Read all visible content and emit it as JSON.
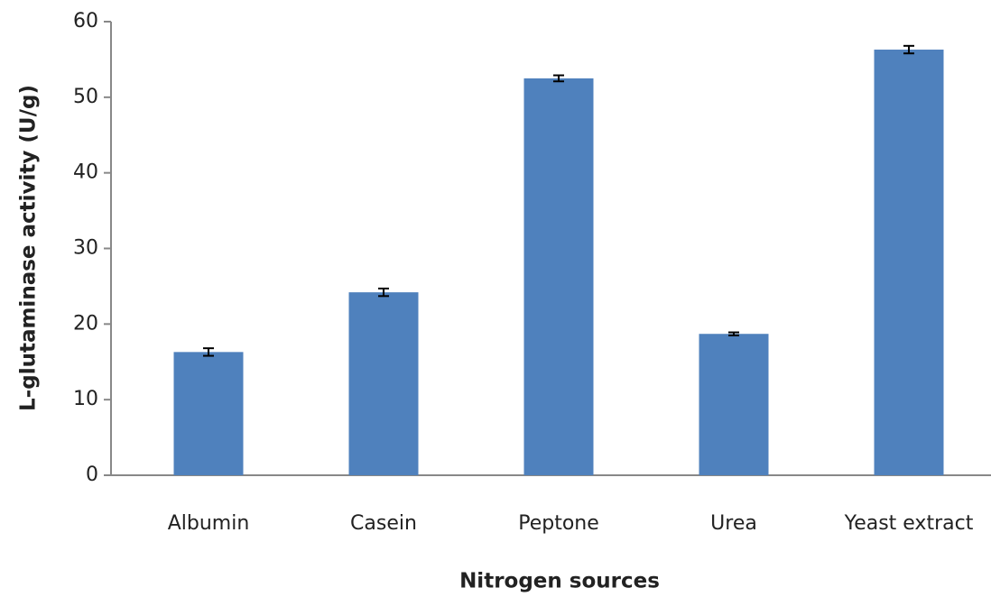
{
  "chart_data": {
    "type": "bar",
    "x_label": "Nitrogen sources",
    "y_label": "L-glutaminase activity (U/g)",
    "categories": [
      "Albumin",
      "Casein",
      "Peptone",
      "Urea",
      "Yeast extract"
    ],
    "values": [
      16.3,
      24.2,
      52.5,
      18.7,
      56.3
    ],
    "errors": [
      0.5,
      0.5,
      0.4,
      0.2,
      0.5
    ],
    "color": "#4f81bd",
    "ylim": [
      0,
      60
    ],
    "yticks": [
      0,
      10,
      20,
      30,
      40,
      50,
      60
    ],
    "grid": false
  }
}
